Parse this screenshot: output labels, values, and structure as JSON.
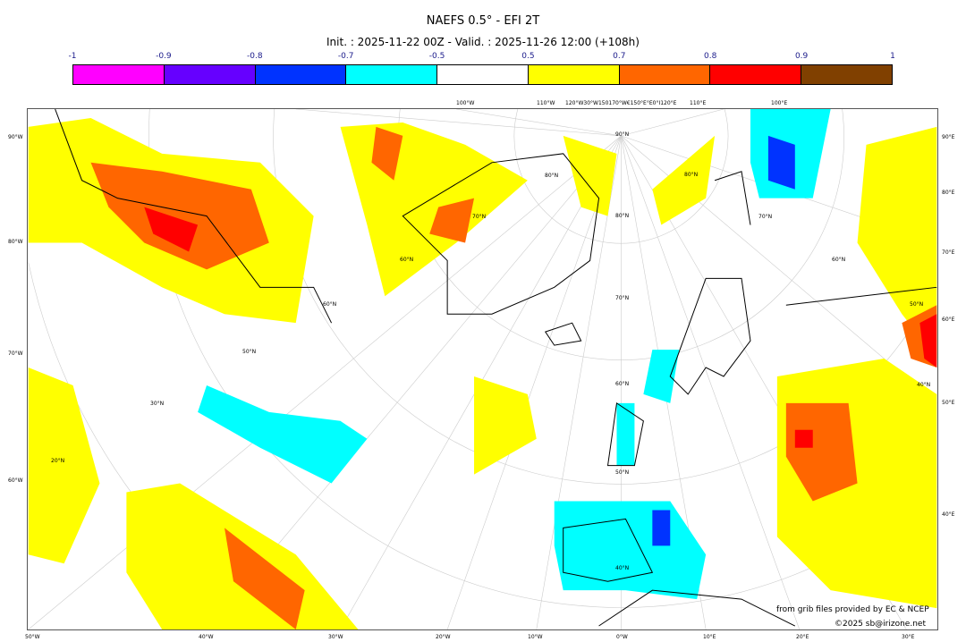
{
  "title": "NAEFS 0.5° - EFI 2T",
  "subtitle": "Init. : 2025-11-22 00Z - Valid. : 2025-11-26 12:00 (+108h)",
  "colorbar": {
    "labels": [
      "-1",
      "-0.9",
      "-0.8",
      "-0.7",
      "-0.5",
      "0.5",
      "0.7",
      "0.8",
      "0.9",
      "1"
    ],
    "colors": [
      "#ff00ff",
      "#6600ff",
      "#0033ff",
      "#00ffff",
      "#ffffff",
      "#ffff00",
      "#ff6600",
      "#ff0000",
      "#804000"
    ]
  },
  "axes": {
    "top": [
      "100°W",
      "110°W",
      "120°W30°W150170°W€150°E°E0°I120°E",
      "110°E",
      "100°E"
    ],
    "bottom": [
      "50°W",
      "40°W",
      "30°W",
      "20°W",
      "10°W",
      "0°W",
      "10°E",
      "20°E",
      "30°E"
    ],
    "left": [
      "90°W",
      "80°W",
      "70°W",
      "60°W"
    ],
    "right": [
      "90°E",
      "80°E",
      "70°E",
      "60°E",
      "50°E",
      "40°E"
    ],
    "lat": [
      "90°N",
      "80°N",
      "80°N",
      "80°N",
      "70°N",
      "70°N",
      "70°N",
      "60°N",
      "60°N",
      "60°N",
      "60°N",
      "50°N",
      "50°N",
      "50°N",
      "40°N",
      "40°N",
      "30°N",
      "20°N"
    ]
  },
  "credits": {
    "source": "from grib files provided by EC & NCEP",
    "copyright": "©2025 sb@irizone.net"
  }
}
